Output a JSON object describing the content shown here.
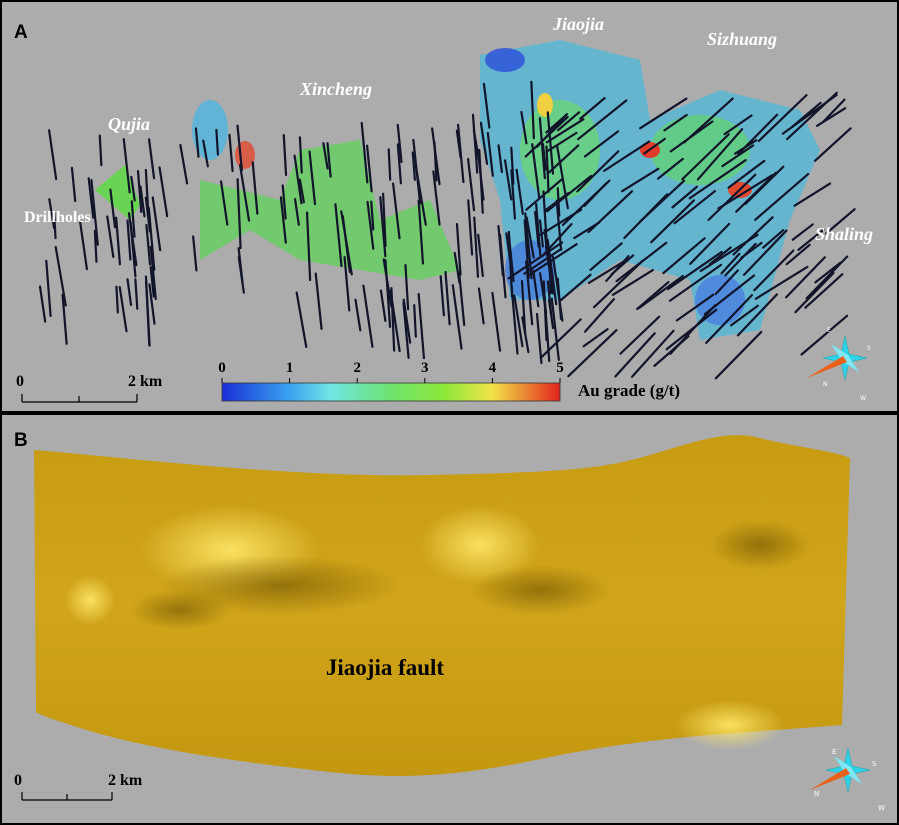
{
  "panel_a": {
    "label": "A",
    "localities": [
      "Qujia",
      "Xincheng",
      "Jiaojia",
      "Sizhuang",
      "Shaling"
    ],
    "drillholes_label": "Drillholes",
    "scale_bar": {
      "start": "0",
      "end": "2 km"
    },
    "colorbar": {
      "ticks": [
        0,
        1,
        2,
        3,
        4,
        5
      ],
      "title": "Au grade (g/t)"
    },
    "compass": [
      "E",
      "S",
      "N",
      "W"
    ]
  },
  "panel_b": {
    "label": "B",
    "surface_label": "Jiaojia fault",
    "scale_bar": {
      "start": "0",
      "end": "2 km"
    },
    "compass": [
      "E",
      "S",
      "N",
      "W"
    ]
  }
}
